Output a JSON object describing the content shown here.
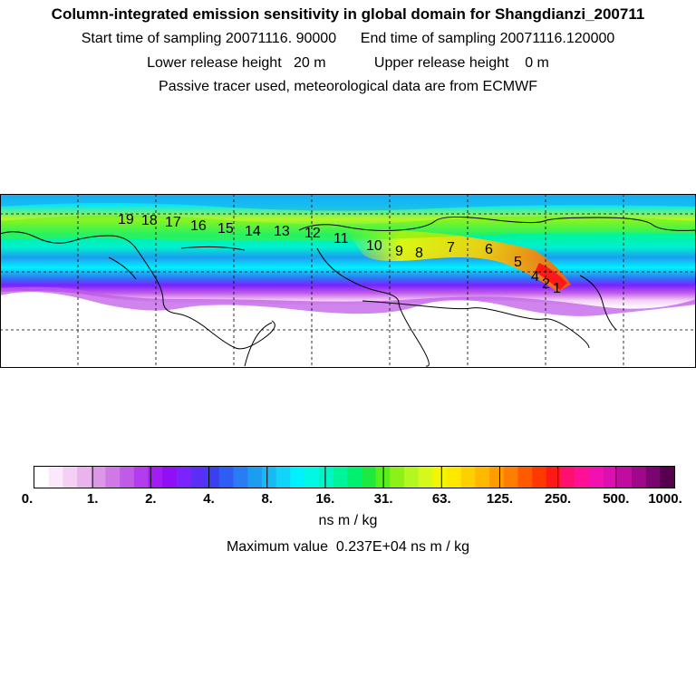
{
  "header": {
    "title": "Column-integrated emission sensitivity in global domain for Shangdianzi_200711",
    "start_label": "Start time of sampling 20071116. 90000",
    "end_label": "End time of sampling 20071116.120000",
    "lower_label": "Lower release height   20 m",
    "upper_label": "Upper release height    0 m",
    "note": "Passive tracer used, meteorological data are from ECMWF"
  },
  "colors": {
    "bins": [
      "#ffffff",
      "#fbe9fb",
      "#f4d0f5",
      "#e9b4ee",
      "#dc97e7",
      "#cf78e6",
      "#c05be8",
      "#b23cee",
      "#a11df3",
      "#8f10f5",
      "#7a22ff",
      "#5c2ef5",
      "#3c3ff0",
      "#2f5cf5",
      "#2a7cf5",
      "#1c9df0",
      "#18b9f4",
      "#10d4f8",
      "#00f2ff",
      "#00f8e4",
      "#00f5c4",
      "#00f59a",
      "#00f070",
      "#1de93f",
      "#55f01a",
      "#8df019",
      "#b2f71d",
      "#d6f91c",
      "#f2f700",
      "#ffe800",
      "#ffd000",
      "#ffb800",
      "#ff9d00",
      "#ff7d00",
      "#ff5a00",
      "#ff3800",
      "#ff1818",
      "#ff1070",
      "#ff1095",
      "#f210b0",
      "#dc10b0",
      "#c20ca0",
      "#a0088a",
      "#7a0470",
      "#56004e"
    ],
    "ocean_line": "#000000"
  },
  "colorbar": {
    "tick_labels": [
      "0.",
      "1.",
      "2.",
      "4.",
      "8.",
      "16.",
      "31.",
      "63.",
      "125.",
      "250.",
      "500.",
      "1000."
    ],
    "units": "ns m / kg",
    "max_value_label": "Maximum value  0.237E+04 ns m / kg"
  },
  "trajectory_labels": [
    "1",
    "2",
    "4",
    "5",
    "6",
    "7",
    "8",
    "9",
    "10",
    "11",
    "12",
    "13",
    "14",
    "15",
    "16",
    "17",
    "18",
    "19"
  ]
}
